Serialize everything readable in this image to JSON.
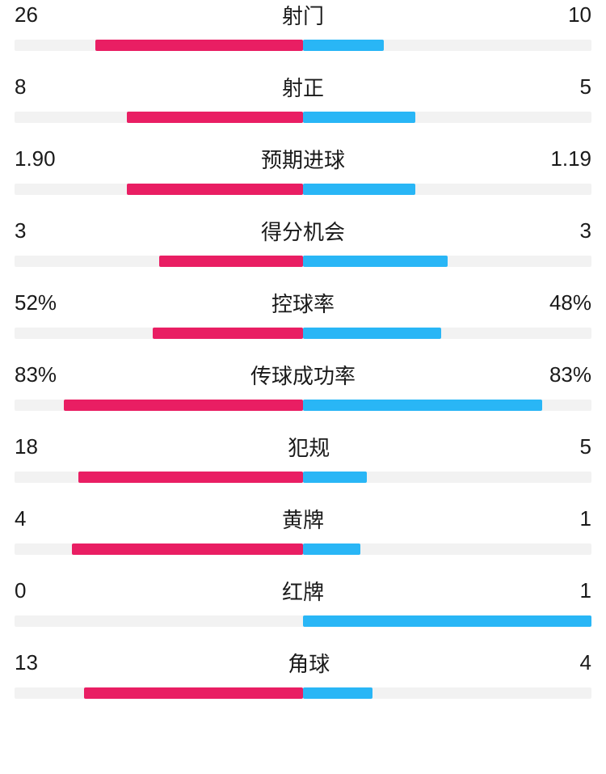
{
  "colors": {
    "left_bar": "#e91e63",
    "right_bar": "#29b6f6",
    "track": "#f2f2f2",
    "text": "#1a1a1a"
  },
  "stats": [
    {
      "label": "射门",
      "left_value": "26",
      "right_value": "10",
      "left_pct": 72,
      "right_pct": 28
    },
    {
      "label": "射正",
      "left_value": "8",
      "right_value": "5",
      "left_pct": 61,
      "right_pct": 39
    },
    {
      "label": "预期进球",
      "left_value": "1.90",
      "right_value": "1.19",
      "left_pct": 61,
      "right_pct": 39
    },
    {
      "label": "得分机会",
      "left_value": "3",
      "right_value": "3",
      "left_pct": 50,
      "right_pct": 50
    },
    {
      "label": "控球率",
      "left_value": "52%",
      "right_value": "48%",
      "left_pct": 52,
      "right_pct": 48
    },
    {
      "label": "传球成功率",
      "left_value": "83%",
      "right_value": "83%",
      "left_pct": 83,
      "right_pct": 83
    },
    {
      "label": "犯规",
      "left_value": "18",
      "right_value": "5",
      "left_pct": 78,
      "right_pct": 22
    },
    {
      "label": "黄牌",
      "left_value": "4",
      "right_value": "1",
      "left_pct": 80,
      "right_pct": 20
    },
    {
      "label": "红牌",
      "left_value": "0",
      "right_value": "1",
      "left_pct": 0,
      "right_pct": 100
    },
    {
      "label": "角球",
      "left_value": "13",
      "right_value": "4",
      "left_pct": 76,
      "right_pct": 24
    }
  ]
}
